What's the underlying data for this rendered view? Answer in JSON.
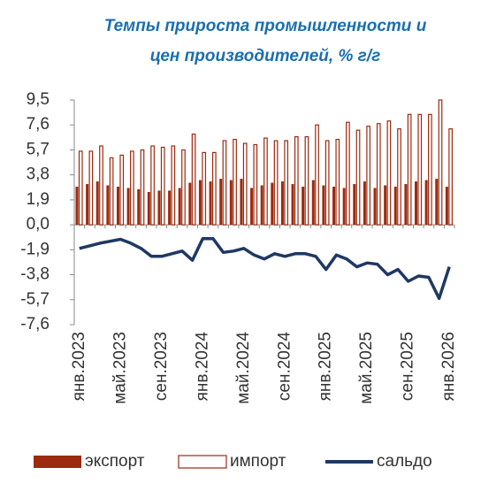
{
  "chart_data": {
    "type": "bar_line",
    "title": [
      "Темпы прироста промышленности и",
      "цен производителей, % г/г"
    ],
    "categories": [
      "янв.2023",
      null,
      null,
      null,
      "май.2023",
      null,
      null,
      null,
      "сен.2023",
      null,
      null,
      null,
      "янв.2024",
      null,
      null,
      null,
      "май.2024",
      null,
      null,
      null,
      "сен.2024",
      null,
      null,
      null,
      "янв.2025",
      null,
      null,
      null,
      "май.2025",
      null,
      null,
      null,
      "сен.2025",
      null,
      null,
      null,
      "янв.2026"
    ],
    "series": [
      {
        "name": "экспорт",
        "kind": "bar",
        "color": "#9c2a0f",
        "values": [
          2.9,
          3.1,
          3.3,
          3.0,
          2.9,
          2.8,
          2.7,
          2.5,
          2.6,
          2.6,
          2.8,
          3.2,
          3.4,
          3.3,
          3.5,
          3.4,
          3.5,
          2.8,
          3.0,
          3.2,
          3.3,
          3.1,
          2.9,
          3.4,
          3.0,
          2.9,
          2.8,
          3.1,
          3.3,
          2.8,
          3.0,
          2.9,
          3.1,
          3.3,
          3.4,
          3.5,
          2.9
        ]
      },
      {
        "name": "импорт",
        "kind": "outline",
        "color": "#9c2a0f",
        "values": [
          5.6,
          5.6,
          6.0,
          5.1,
          5.3,
          5.6,
          5.7,
          6.0,
          5.9,
          6.0,
          5.7,
          6.9,
          5.5,
          5.5,
          6.4,
          6.5,
          6.2,
          6.1,
          6.6,
          6.4,
          6.4,
          6.7,
          6.7,
          7.6,
          6.4,
          6.5,
          7.8,
          7.2,
          7.5,
          7.7,
          7.9,
          7.3,
          8.4,
          8.4,
          8.4,
          9.5,
          7.3
        ]
      },
      {
        "name": "сальдо",
        "kind": "line",
        "color": "#1f3864",
        "values": [
          -1.8,
          -1.6,
          -1.4,
          -1.25,
          -1.1,
          -1.4,
          -1.8,
          -2.4,
          -2.4,
          -2.2,
          -2.0,
          -2.7,
          -1.05,
          -1.05,
          -2.1,
          -2.0,
          -1.8,
          -2.3,
          -2.6,
          -2.2,
          -2.4,
          -2.2,
          -2.2,
          -2.4,
          -3.4,
          -2.3,
          -2.6,
          -3.2,
          -2.9,
          -3.0,
          -3.8,
          -3.4,
          -4.3,
          -3.9,
          -4.0,
          -5.6,
          -3.2
        ]
      }
    ],
    "ylim": [
      -7.6,
      9.5
    ],
    "yticks": [
      {
        "value": 9.5,
        "label": "9,5"
      },
      {
        "value": 7.6,
        "label": "7,6"
      },
      {
        "value": 5.7,
        "label": "5,7"
      },
      {
        "value": 3.8,
        "label": "3,8"
      },
      {
        "value": 1.9,
        "label": "1,9"
      },
      {
        "value": 0,
        "label": "0,0"
      },
      {
        "value": -1.9,
        "label": "-1,9"
      },
      {
        "value": -3.8,
        "label": "-3,8"
      },
      {
        "value": -5.7,
        "label": "-5,7"
      },
      {
        "value": -7.6,
        "label": "-7,6"
      }
    ]
  }
}
